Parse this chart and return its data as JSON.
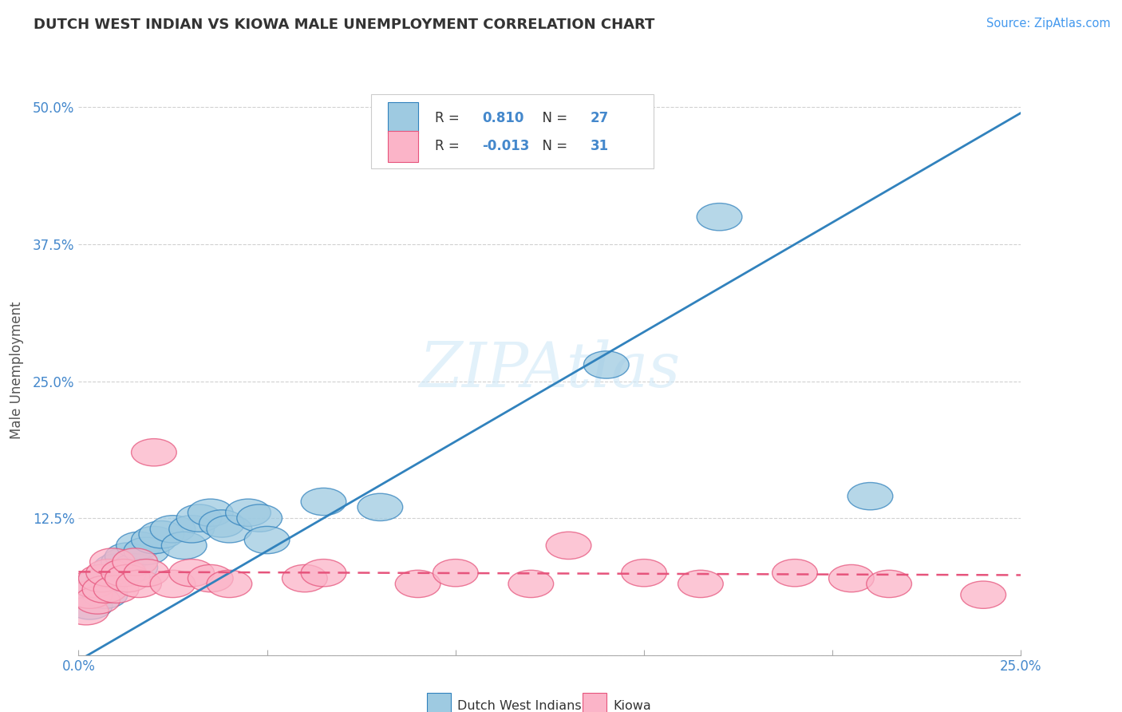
{
  "title": "DUTCH WEST INDIAN VS KIOWA MALE UNEMPLOYMENT CORRELATION CHART",
  "source": "Source: ZipAtlas.com",
  "xlabel": "",
  "ylabel": "Male Unemployment",
  "xlim": [
    0.0,
    0.25
  ],
  "ylim": [
    0.0,
    0.52
  ],
  "xticks": [
    0.0,
    0.05,
    0.1,
    0.15,
    0.2,
    0.25
  ],
  "xticklabels": [
    "0.0%",
    "",
    "",
    "",
    "",
    "25.0%"
  ],
  "yticks": [
    0.0,
    0.125,
    0.25,
    0.375,
    0.5
  ],
  "yticklabels": [
    "",
    "12.5%",
    "25.0%",
    "37.5%",
    "50.0%"
  ],
  "legend1_r": "0.810",
  "legend1_n": "27",
  "legend2_r": "-0.013",
  "legend2_n": "31",
  "blue_color": "#9ecae1",
  "pink_color": "#fbb4c8",
  "blue_line_color": "#3182bd",
  "pink_line_color": "#e6547c",
  "watermark": "ZIPAtlas",
  "blue_points": [
    [
      0.003,
      0.045
    ],
    [
      0.005,
      0.065
    ],
    [
      0.007,
      0.055
    ],
    [
      0.008,
      0.07
    ],
    [
      0.01,
      0.08
    ],
    [
      0.012,
      0.085
    ],
    [
      0.013,
      0.09
    ],
    [
      0.015,
      0.08
    ],
    [
      0.016,
      0.1
    ],
    [
      0.018,
      0.095
    ],
    [
      0.02,
      0.105
    ],
    [
      0.022,
      0.11
    ],
    [
      0.025,
      0.115
    ],
    [
      0.028,
      0.1
    ],
    [
      0.03,
      0.115
    ],
    [
      0.032,
      0.125
    ],
    [
      0.035,
      0.13
    ],
    [
      0.038,
      0.12
    ],
    [
      0.04,
      0.115
    ],
    [
      0.045,
      0.13
    ],
    [
      0.048,
      0.125
    ],
    [
      0.05,
      0.105
    ],
    [
      0.065,
      0.14
    ],
    [
      0.08,
      0.135
    ],
    [
      0.14,
      0.265
    ],
    [
      0.17,
      0.4
    ],
    [
      0.21,
      0.145
    ]
  ],
  "pink_points": [
    [
      0.002,
      0.04
    ],
    [
      0.003,
      0.055
    ],
    [
      0.004,
      0.065
    ],
    [
      0.005,
      0.05
    ],
    [
      0.006,
      0.07
    ],
    [
      0.007,
      0.06
    ],
    [
      0.008,
      0.075
    ],
    [
      0.009,
      0.085
    ],
    [
      0.01,
      0.06
    ],
    [
      0.012,
      0.075
    ],
    [
      0.013,
      0.07
    ],
    [
      0.015,
      0.085
    ],
    [
      0.016,
      0.065
    ],
    [
      0.018,
      0.075
    ],
    [
      0.02,
      0.185
    ],
    [
      0.025,
      0.065
    ],
    [
      0.03,
      0.075
    ],
    [
      0.035,
      0.07
    ],
    [
      0.04,
      0.065
    ],
    [
      0.06,
      0.07
    ],
    [
      0.065,
      0.075
    ],
    [
      0.09,
      0.065
    ],
    [
      0.1,
      0.075
    ],
    [
      0.12,
      0.065
    ],
    [
      0.13,
      0.1
    ],
    [
      0.15,
      0.075
    ],
    [
      0.165,
      0.065
    ],
    [
      0.19,
      0.075
    ],
    [
      0.205,
      0.07
    ],
    [
      0.215,
      0.065
    ],
    [
      0.24,
      0.055
    ]
  ],
  "blue_line": [
    [
      0.0,
      -0.005
    ],
    [
      0.25,
      0.495
    ]
  ],
  "pink_line": [
    [
      0.0,
      0.076
    ],
    [
      0.25,
      0.073
    ]
  ]
}
